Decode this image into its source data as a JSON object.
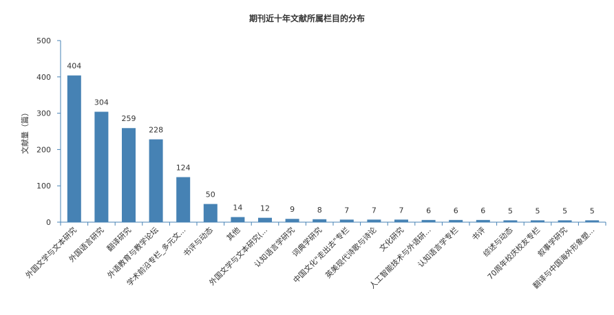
{
  "chart_data": {
    "type": "bar",
    "title": "期刊近十年文献所属栏目的分布",
    "ylabel": "文献量（篇）",
    "xlabel": "",
    "ylim": [
      0,
      500
    ],
    "yticks": [
      0,
      100,
      200,
      300,
      400,
      500
    ],
    "grid": false,
    "bar_color": "#4682b4",
    "categories": [
      "外国文学与文本研究",
      "外国语言研究",
      "翻译研究",
      "外语教育与教学论坛",
      "学术前沿专栏_多元文...",
      "书评与动态",
      "其他",
      "外国文学与文本研究(...",
      "认知语言学研究",
      "词典学研究",
      "中国文化\"走出去\"专栏",
      "英美现代诗歌与诗论",
      "文化研究",
      "人工智能技术与外语研...",
      "认知语言学专栏",
      "书评",
      "综述与动态",
      "70周年校庆校友专栏",
      "叙事学研究",
      "翻译与中国海外形象塑..."
    ],
    "values": [
      404,
      304,
      259,
      228,
      124,
      50,
      14,
      12,
      9,
      8,
      7,
      7,
      7,
      6,
      6,
      6,
      5,
      5,
      5,
      5
    ]
  }
}
